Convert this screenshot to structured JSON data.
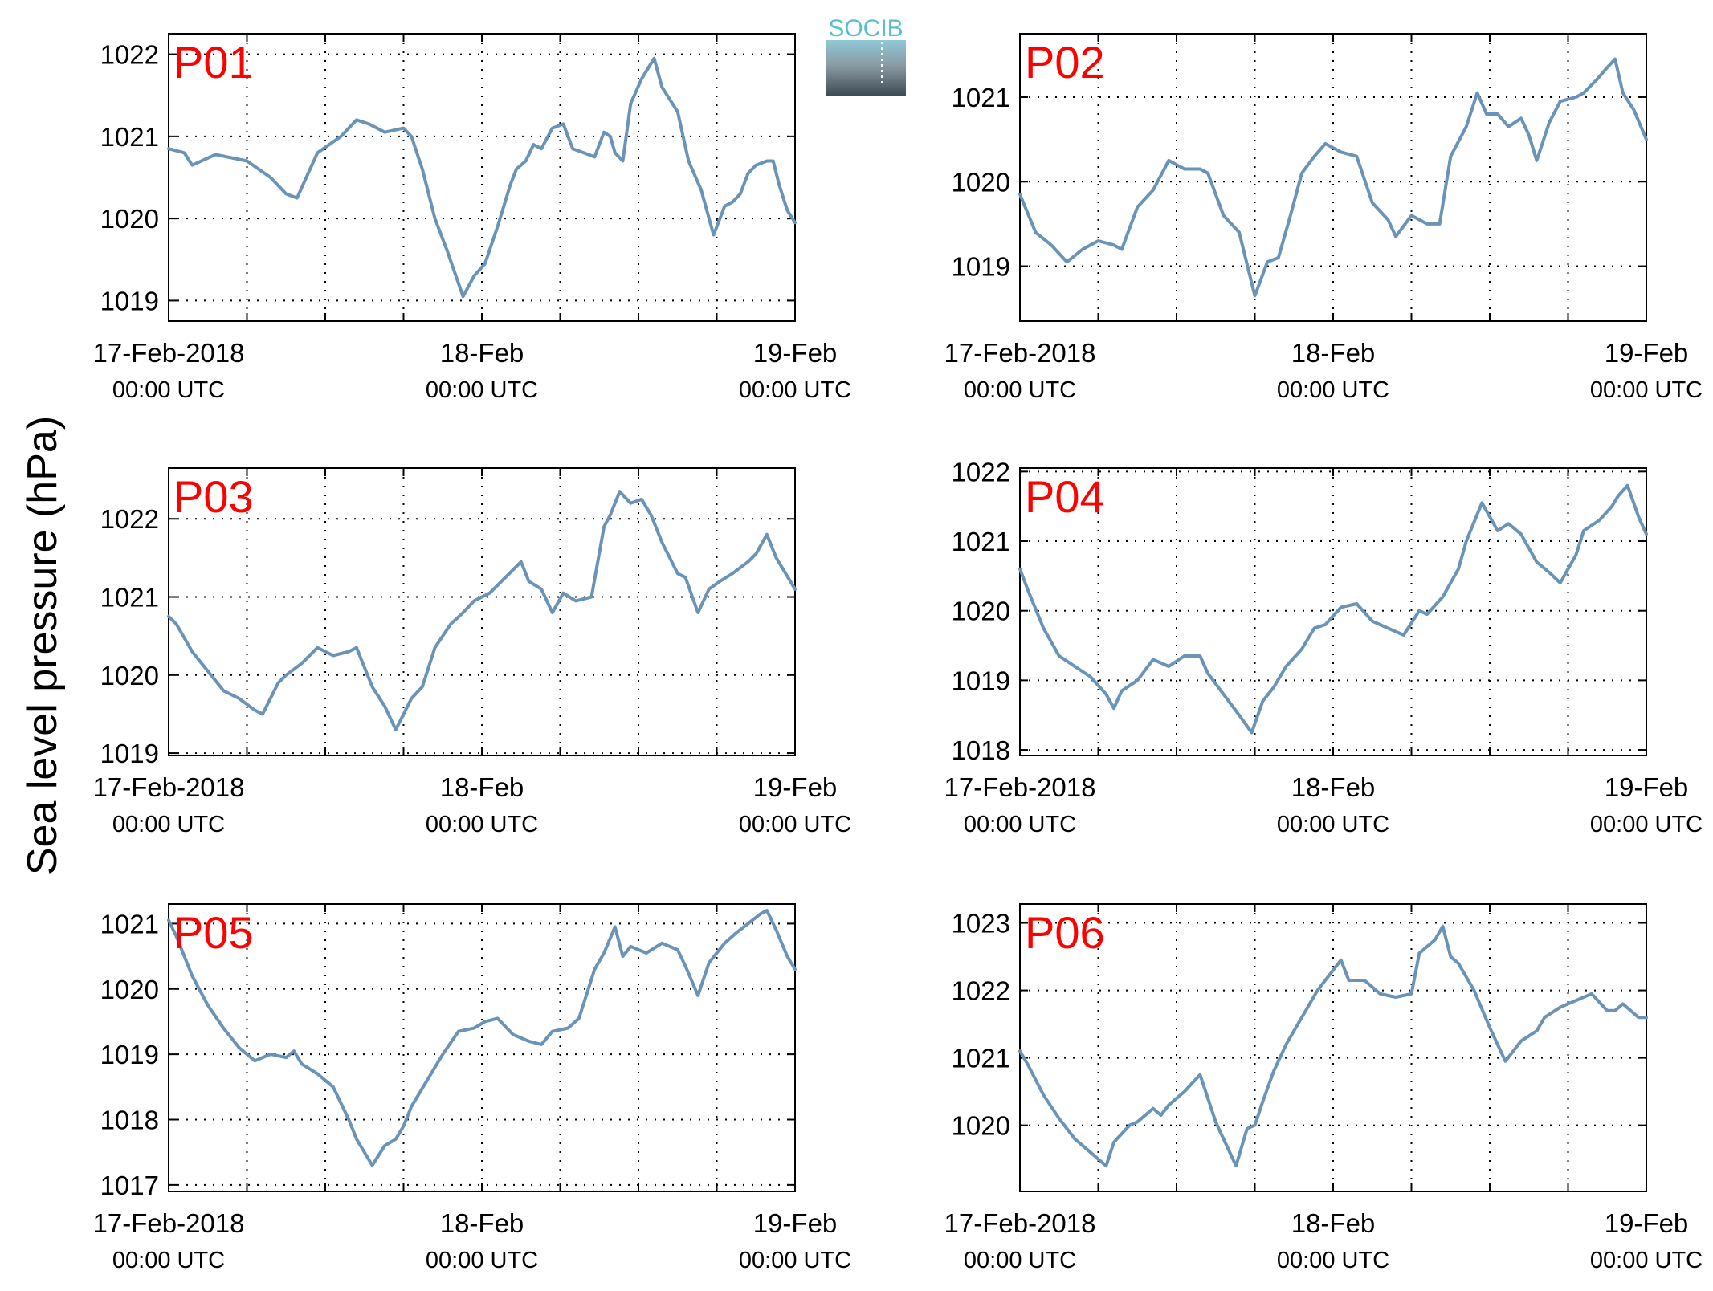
{
  "ylabel": "Sea level pressure (hPa)",
  "logo": {
    "text": "SOCIB"
  },
  "colors": {
    "series": "#6a93b8",
    "panel_label": "#ff0000",
    "logo_text": "#5bbcd0"
  },
  "chart_data": [
    {
      "type": "line",
      "name": "P01",
      "x": [
        0.0,
        0.1,
        0.15,
        0.3,
        0.5,
        0.65,
        0.75,
        0.82,
        0.95,
        1.1,
        1.2,
        1.28,
        1.38,
        1.5,
        1.55,
        1.62,
        1.7,
        1.78,
        1.88,
        1.95,
        2.02,
        2.1,
        2.18,
        2.22,
        2.28,
        2.33,
        2.38,
        2.45,
        2.52,
        2.58,
        2.65,
        2.72,
        2.78,
        2.82,
        2.85,
        2.9,
        2.95,
        3.02,
        3.1,
        3.15,
        3.2,
        3.25,
        3.32,
        3.4,
        3.48,
        3.55,
        3.6,
        3.65,
        3.7,
        3.75,
        3.82,
        3.86,
        3.9,
        3.95,
        4.0
      ],
      "y": [
        1020.85,
        1020.8,
        1020.65,
        1020.78,
        1020.7,
        1020.5,
        1020.3,
        1020.25,
        1020.8,
        1021.0,
        1021.2,
        1021.15,
        1021.05,
        1021.1,
        1021.0,
        1020.6,
        1020.0,
        1019.6,
        1019.05,
        1019.3,
        1019.45,
        1019.9,
        1020.4,
        1020.6,
        1020.7,
        1020.9,
        1020.85,
        1021.1,
        1021.15,
        1020.85,
        1020.8,
        1020.75,
        1021.05,
        1021.0,
        1020.8,
        1020.7,
        1021.4,
        1021.7,
        1021.95,
        1021.6,
        1021.45,
        1021.3,
        1020.7,
        1020.35,
        1019.8,
        1020.15,
        1020.2,
        1020.3,
        1020.55,
        1020.65,
        1020.7,
        1020.7,
        1020.4,
        1020.1,
        1019.95
      ],
      "xlim": [
        0,
        4
      ],
      "ylim": [
        1018.75,
        1022.25
      ],
      "yticks": [
        1019,
        1020,
        1021,
        1022
      ],
      "xticks": [
        {
          "label": "17-Feb-2018",
          "sub": "00:00 UTC"
        },
        {
          "label": "18-Feb",
          "sub": "00:00 UTC"
        },
        {
          "label": "19-Feb",
          "sub": "00:00 UTC"
        }
      ]
    },
    {
      "type": "line",
      "name": "P02",
      "x": [
        0.0,
        0.1,
        0.2,
        0.3,
        0.4,
        0.5,
        0.6,
        0.65,
        0.75,
        0.85,
        0.95,
        1.05,
        1.15,
        1.2,
        1.3,
        1.4,
        1.5,
        1.58,
        1.65,
        1.72,
        1.8,
        1.88,
        1.95,
        2.05,
        2.15,
        2.25,
        2.35,
        2.4,
        2.5,
        2.55,
        2.6,
        2.68,
        2.75,
        2.85,
        2.92,
        2.98,
        3.05,
        3.12,
        3.2,
        3.25,
        3.3,
        3.38,
        3.45,
        3.55,
        3.6,
        3.68,
        3.75,
        3.8,
        3.85,
        3.92,
        4.0
      ],
      "y": [
        1019.85,
        1019.4,
        1019.25,
        1019.05,
        1019.2,
        1019.3,
        1019.25,
        1019.2,
        1019.7,
        1019.9,
        1020.25,
        1020.15,
        1020.15,
        1020.1,
        1019.6,
        1019.4,
        1018.65,
        1019.05,
        1019.1,
        1019.55,
        1020.1,
        1020.3,
        1020.45,
        1020.35,
        1020.3,
        1019.75,
        1019.55,
        1019.35,
        1019.6,
        1019.55,
        1019.5,
        1019.5,
        1020.3,
        1020.65,
        1021.05,
        1020.8,
        1020.8,
        1020.65,
        1020.75,
        1020.55,
        1020.25,
        1020.7,
        1020.95,
        1021.0,
        1021.05,
        1021.2,
        1021.35,
        1021.45,
        1021.05,
        1020.85,
        1020.5
      ],
      "xlim": [
        0,
        4
      ],
      "ylim": [
        1018.35,
        1021.75
      ],
      "yticks": [
        1019,
        1020,
        1021
      ],
      "xticks": [
        {
          "label": "17-Feb-2018",
          "sub": "00:00 UTC"
        },
        {
          "label": "18-Feb",
          "sub": "00:00 UTC"
        },
        {
          "label": "19-Feb",
          "sub": "00:00 UTC"
        }
      ]
    },
    {
      "type": "line",
      "name": "P03",
      "x": [
        0.0,
        0.05,
        0.15,
        0.25,
        0.35,
        0.45,
        0.55,
        0.6,
        0.7,
        0.75,
        0.85,
        0.95,
        1.05,
        1.15,
        1.2,
        1.3,
        1.38,
        1.45,
        1.55,
        1.62,
        1.7,
        1.8,
        1.88,
        1.95,
        2.05,
        2.15,
        2.25,
        2.3,
        2.38,
        2.45,
        2.52,
        2.6,
        2.7,
        2.78,
        2.82,
        2.88,
        2.95,
        3.02,
        3.08,
        3.15,
        3.25,
        3.3,
        3.38,
        3.45,
        3.52,
        3.6,
        3.7,
        3.75,
        3.82,
        3.88,
        3.94,
        4.0
      ],
      "y": [
        1020.75,
        1020.65,
        1020.3,
        1020.05,
        1019.8,
        1019.7,
        1019.55,
        1019.5,
        1019.9,
        1020.0,
        1020.15,
        1020.35,
        1020.25,
        1020.3,
        1020.35,
        1019.85,
        1019.6,
        1019.3,
        1019.7,
        1019.85,
        1020.35,
        1020.65,
        1020.8,
        1020.95,
        1021.05,
        1021.25,
        1021.45,
        1021.2,
        1021.1,
        1020.8,
        1021.05,
        1020.95,
        1021.0,
        1021.9,
        1022.05,
        1022.35,
        1022.2,
        1022.25,
        1022.05,
        1021.7,
        1021.3,
        1021.25,
        1020.8,
        1021.1,
        1021.2,
        1021.3,
        1021.45,
        1021.55,
        1021.8,
        1021.5,
        1021.3,
        1021.1
      ],
      "xlim": [
        0,
        4
      ],
      "ylim": [
        1018.97,
        1022.65
      ],
      "yticks": [
        1019,
        1020,
        1021,
        1022
      ],
      "xticks": [
        {
          "label": "17-Feb-2018",
          "sub": "00:00 UTC"
        },
        {
          "label": "18-Feb",
          "sub": "00:00 UTC"
        },
        {
          "label": "19-Feb",
          "sub": "00:00 UTC"
        }
      ]
    },
    {
      "type": "line",
      "name": "P04",
      "x": [
        0.0,
        0.05,
        0.15,
        0.25,
        0.35,
        0.45,
        0.55,
        0.6,
        0.65,
        0.75,
        0.85,
        0.95,
        1.05,
        1.15,
        1.2,
        1.3,
        1.4,
        1.48,
        1.55,
        1.62,
        1.7,
        1.8,
        1.88,
        1.95,
        2.05,
        2.15,
        2.25,
        2.35,
        2.45,
        2.55,
        2.6,
        2.7,
        2.8,
        2.85,
        2.95,
        3.05,
        3.12,
        3.2,
        3.3,
        3.38,
        3.45,
        3.55,
        3.6,
        3.7,
        3.78,
        3.82,
        3.88,
        3.95,
        4.0
      ],
      "y": [
        1020.6,
        1020.3,
        1019.75,
        1019.35,
        1019.2,
        1019.05,
        1018.8,
        1018.6,
        1018.85,
        1019.0,
        1019.3,
        1019.2,
        1019.35,
        1019.35,
        1019.1,
        1018.8,
        1018.5,
        1018.25,
        1018.7,
        1018.9,
        1019.2,
        1019.45,
        1019.75,
        1019.8,
        1020.05,
        1020.1,
        1019.85,
        1019.75,
        1019.65,
        1020.0,
        1019.95,
        1020.2,
        1020.6,
        1021.0,
        1021.55,
        1021.15,
        1021.25,
        1021.1,
        1020.7,
        1020.55,
        1020.4,
        1020.8,
        1021.15,
        1021.3,
        1021.5,
        1021.65,
        1021.8,
        1021.35,
        1021.1
      ],
      "xlim": [
        0,
        4
      ],
      "ylim": [
        1017.92,
        1022.05
      ],
      "yticks": [
        1018,
        1019,
        1020,
        1021,
        1022
      ],
      "xticks": [
        {
          "label": "17-Feb-2018",
          "sub": "00:00 UTC"
        },
        {
          "label": "18-Feb",
          "sub": "00:00 UTC"
        },
        {
          "label": "19-Feb",
          "sub": "00:00 UTC"
        }
      ]
    },
    {
      "type": "line",
      "name": "P05",
      "x": [
        0.0,
        0.05,
        0.15,
        0.25,
        0.35,
        0.45,
        0.55,
        0.6,
        0.65,
        0.75,
        0.8,
        0.85,
        0.95,
        1.05,
        1.15,
        1.2,
        1.3,
        1.38,
        1.45,
        1.5,
        1.55,
        1.65,
        1.75,
        1.85,
        1.95,
        2.02,
        2.1,
        2.2,
        2.3,
        2.38,
        2.45,
        2.55,
        2.62,
        2.72,
        2.78,
        2.85,
        2.9,
        2.95,
        3.05,
        3.15,
        3.25,
        3.3,
        3.38,
        3.45,
        3.55,
        3.62,
        3.7,
        3.78,
        3.82,
        3.88,
        3.95,
        4.0
      ],
      "y": [
        1021.05,
        1020.8,
        1020.2,
        1019.75,
        1019.4,
        1019.1,
        1018.9,
        1018.95,
        1019.0,
        1018.95,
        1019.05,
        1018.85,
        1018.7,
        1018.5,
        1018.0,
        1017.7,
        1017.3,
        1017.6,
        1017.7,
        1017.9,
        1018.2,
        1018.6,
        1019.0,
        1019.35,
        1019.4,
        1019.5,
        1019.55,
        1019.3,
        1019.2,
        1019.15,
        1019.35,
        1019.4,
        1019.55,
        1020.3,
        1020.55,
        1020.95,
        1020.5,
        1020.65,
        1020.55,
        1020.7,
        1020.6,
        1020.35,
        1019.9,
        1020.4,
        1020.7,
        1020.85,
        1021.0,
        1021.15,
        1021.2,
        1020.9,
        1020.5,
        1020.3
      ],
      "xlim": [
        0,
        4
      ],
      "ylim": [
        1016.9,
        1021.3
      ],
      "yticks": [
        1017,
        1018,
        1019,
        1020,
        1021
      ],
      "xticks": [
        {
          "label": "17-Feb-2018",
          "sub": "00:00 UTC"
        },
        {
          "label": "18-Feb",
          "sub": "00:00 UTC"
        },
        {
          "label": "19-Feb",
          "sub": "00:00 UTC"
        }
      ]
    },
    {
      "type": "line",
      "name": "P06",
      "x": [
        0.0,
        0.05,
        0.15,
        0.25,
        0.35,
        0.45,
        0.55,
        0.6,
        0.7,
        0.75,
        0.85,
        0.9,
        0.95,
        1.05,
        1.15,
        1.25,
        1.3,
        1.38,
        1.45,
        1.5,
        1.55,
        1.62,
        1.7,
        1.8,
        1.9,
        2.0,
        2.05,
        2.1,
        2.2,
        2.3,
        2.4,
        2.5,
        2.55,
        2.65,
        2.7,
        2.75,
        2.8,
        2.9,
        3.0,
        3.1,
        3.2,
        3.3,
        3.35,
        3.45,
        3.55,
        3.65,
        3.75,
        3.8,
        3.85,
        3.9,
        3.95,
        4.0
      ],
      "y": [
        1021.1,
        1020.9,
        1020.45,
        1020.1,
        1019.8,
        1019.6,
        1019.4,
        1019.75,
        1020.0,
        1020.05,
        1020.25,
        1020.15,
        1020.3,
        1020.5,
        1020.75,
        1020.05,
        1019.8,
        1019.4,
        1019.95,
        1020.0,
        1020.35,
        1020.8,
        1021.2,
        1021.6,
        1022.0,
        1022.3,
        1022.45,
        1022.15,
        1022.15,
        1021.95,
        1021.9,
        1021.95,
        1022.55,
        1022.75,
        1022.95,
        1022.5,
        1022.4,
        1022.0,
        1021.45,
        1020.95,
        1021.25,
        1021.4,
        1021.6,
        1021.75,
        1021.85,
        1021.95,
        1021.7,
        1021.7,
        1021.8,
        1021.7,
        1021.6,
        1021.6
      ],
      "xlim": [
        0,
        4
      ],
      "ylim": [
        1019.02,
        1023.28
      ],
      "yticks": [
        1020,
        1021,
        1022,
        1023
      ],
      "xticks": [
        {
          "label": "17-Feb-2018",
          "sub": "00:00 UTC"
        },
        {
          "label": "18-Feb",
          "sub": "00:00 UTC"
        },
        {
          "label": "19-Feb",
          "sub": "00:00 UTC"
        }
      ]
    }
  ]
}
